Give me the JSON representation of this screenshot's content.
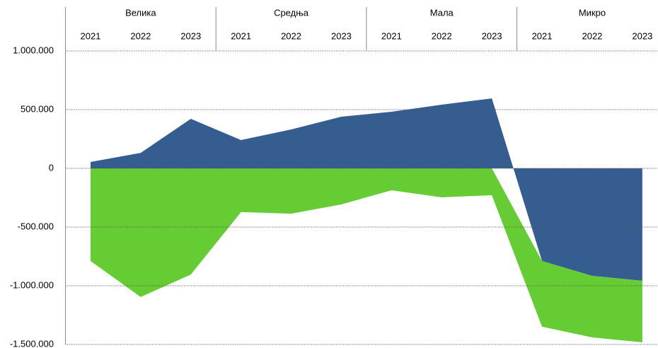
{
  "chart_data": {
    "type": "area",
    "category_groups": [
      "Велика",
      "Средња",
      "Мала",
      "Микро"
    ],
    "categories": [
      "2021",
      "2022",
      "2023",
      "2021",
      "2022",
      "2023",
      "2021",
      "2022",
      "2023",
      "2021",
      "2022",
      "2023"
    ],
    "series": [
      {
        "color": "#355d8f",
        "values": [
          54000,
          132000,
          422000,
          241000,
          331000,
          440000,
          482000,
          542000,
          596000,
          -789000,
          -916000,
          -958000
        ]
      },
      {
        "color": "#66cc33",
        "values": [
          -789000,
          -1096000,
          -904000,
          -373000,
          -386000,
          -307000,
          -187000,
          -247000,
          -229000,
          -560000,
          -524000,
          -524000
        ]
      }
    ],
    "ylim": [
      -1500000,
      1000000
    ],
    "yticks": [
      {
        "value": -1500000,
        "label": "-1.500.000"
      },
      {
        "value": -1000000,
        "label": "-1.000.000"
      },
      {
        "value": -500000,
        "label": "-500.000"
      },
      0,
      {
        "value": 500000,
        "label": "500.000"
      },
      {
        "value": 1000000,
        "label": "1.000.000"
      }
    ],
    "grid": true,
    "stacked": true
  }
}
